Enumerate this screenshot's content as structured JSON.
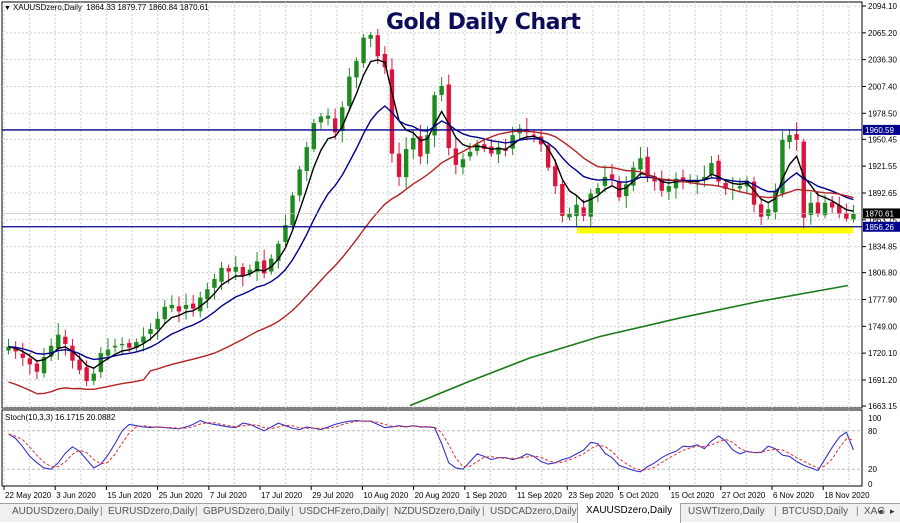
{
  "header": {
    "symbol_label": "XAUUSDzero,Daily",
    "ohlc": "1864.33 1879.77 1860.84 1870.61",
    "title": "Gold Daily Chart"
  },
  "stochastic": {
    "label": "Stoch(10,3,3) 16.1715 20.0882",
    "levels": [
      "100",
      "80",
      "20",
      "0"
    ]
  },
  "tabs": [
    {
      "label": "AUDUSDzero,Daily",
      "active": false
    },
    {
      "label": "EURUSDzero,Daily",
      "active": false
    },
    {
      "label": "GBPUSDzero,Daily",
      "active": false
    },
    {
      "label": "USDCHFzero,Daily",
      "active": false
    },
    {
      "label": "NZDUSDzero,Daily",
      "active": false
    },
    {
      "label": "USDCADzero,Daily",
      "active": false
    },
    {
      "label": "XAUUSDzero,Daily",
      "active": true
    },
    {
      "label": "USWTIzero,Daily",
      "active": false
    },
    {
      "label": "BTCUSD,Daily",
      "active": false
    },
    {
      "label": "XAG",
      "active": false
    }
  ],
  "nav": {
    "left": "◂",
    "right": "▸"
  },
  "colors": {
    "bull": "#1f8a1f",
    "bear": "#dc143c",
    "ma_fast": "#000000",
    "ma_mid": "#00008b",
    "ma_slow": "#b22222",
    "ma_long": "#1a7a1a",
    "hline": "#00008b",
    "support_zone": "#ffff00",
    "stoch_main": "#3333cc",
    "stoch_signal": "#e03030",
    "grid": "#d0d0d0",
    "title": "#0c0c5a"
  },
  "chart_data": {
    "type": "candlestick",
    "title": "Gold Daily Chart",
    "symbol": "XAUUSDzero,Daily",
    "price_axis": [
      "2094.10",
      "2065.20",
      "2036.30",
      "2007.40",
      "1978.50",
      "1950.45",
      "1921.55",
      "1892.65",
      "1863.75",
      "1834.85",
      "1806.80",
      "1777.90",
      "1749.00",
      "1720.10",
      "1691.20",
      "1663.15"
    ],
    "ylim": [
      1663.15,
      2094.1
    ],
    "x_tick_labels": [
      "22 May 2020",
      "3 Jun 2020",
      "15 Jun 2020",
      "25 Jun 2020",
      "7 Jul 2020",
      "17 Jul 2020",
      "29 Jul 2020",
      "10 Aug 2020",
      "20 Aug 2020",
      "1 Sep 2020",
      "11 Sep 2020",
      "23 Sep 2020",
      "5 Oct 2020",
      "15 Oct 2020",
      "27 Oct 2020",
      "6 Nov 2020",
      "18 Nov 2020"
    ],
    "horizontal_lines": [
      {
        "price": 1960.59,
        "label": "1960.59",
        "color": "#00008b"
      },
      {
        "price": 1856.26,
        "label": "1856.26",
        "color": "#00008b"
      }
    ],
    "current_price": {
      "price": 1870.61,
      "label": "1870.61"
    },
    "support_zone": {
      "from_date": "23 Sep 2020",
      "to_date": "18 Nov 2020",
      "top": 1856.26,
      "bottom": 1848
    },
    "last_ohlc": {
      "open": 1864.33,
      "high": 1879.77,
      "low": 1860.84,
      "close": 1870.61
    },
    "closes": [
      1727,
      1722,
      1715,
      1708,
      1700,
      1716,
      1728,
      1740,
      1730,
      1712,
      1702,
      1690,
      1698,
      1720,
      1724,
      1728,
      1730,
      1726,
      1732,
      1738,
      1746,
      1757,
      1770,
      1772,
      1765,
      1772,
      1768,
      1780,
      1789,
      1800,
      1812,
      1808,
      1813,
      1803,
      1810,
      1819,
      1806,
      1822,
      1838,
      1858,
      1890,
      1918,
      1942,
      1968,
      1975,
      1976,
      1958,
      1985,
      2018,
      2035,
      2060,
      2063,
      2040,
      2028,
      1935,
      1910,
      1940,
      1952,
      1932,
      1955,
      1998,
      2008,
      1941,
      1923,
      1929,
      1937,
      1945,
      1940,
      1935,
      1942,
      1938,
      1955,
      1962,
      1958,
      1955,
      1945,
      1920,
      1900,
      1868,
      1870,
      1880,
      1868,
      1892,
      1898,
      1910,
      1908,
      1888,
      1902,
      1920,
      1930,
      1910,
      1905,
      1895,
      1900,
      1908,
      1905,
      1906,
      1905,
      1910,
      1925,
      1905,
      1897,
      1897,
      1900,
      1906,
      1880,
      1867,
      1875,
      1895,
      1950,
      1955,
      1950,
      1866,
      1882,
      1870,
      1882,
      1877,
      1870,
      1865,
      1870
    ],
    "series": [
      {
        "name": "MA fast (black)",
        "color": "#000000"
      },
      {
        "name": "MA mid (navy)",
        "color": "#00008b"
      },
      {
        "name": "MA slow (red)",
        "color": "#b22222"
      },
      {
        "name": "MA long (green)",
        "color": "#1a7a1a",
        "approx_points": [
          [
            1663,
            "10 Aug 2020"
          ],
          [
            1792,
            "18 Nov 2020"
          ]
        ]
      }
    ],
    "stochastic": {
      "params": "10,3,3",
      "main": 16.1715,
      "signal": 20.0882,
      "ylim": [
        0,
        100
      ],
      "levels": [
        20,
        80
      ]
    }
  }
}
